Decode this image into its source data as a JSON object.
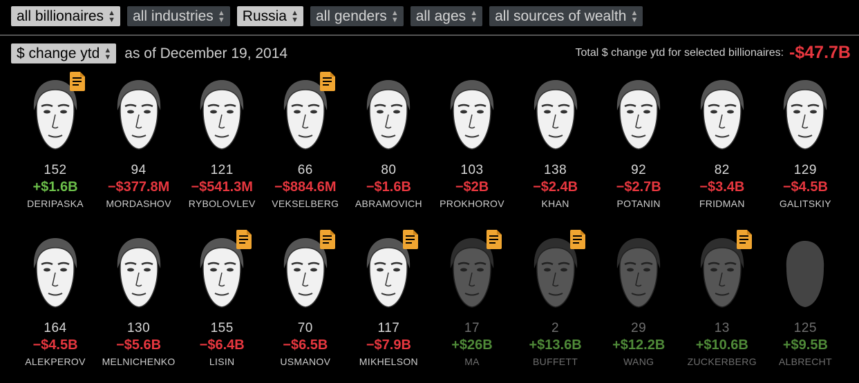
{
  "filters": {
    "billionaires": "all billionaires",
    "industries": "all industries",
    "country": "Russia",
    "genders": "all genders",
    "ages": "all ages",
    "sources": "all sources of wealth"
  },
  "metric_select": "$ change ytd",
  "as_of": "as of December 19, 2014",
  "total_label": "Total $ change ytd for selected billionaires:",
  "total_value": "-$47.7B",
  "colors": {
    "negative": "#e8373f",
    "positive": "#6cc04a",
    "doc_icon": "#f0a531",
    "background": "#000000"
  },
  "people": [
    {
      "rank": "152",
      "change": "+$1.6B",
      "name": "DERIPASKA",
      "sign": "pos",
      "doc": true,
      "dim": false
    },
    {
      "rank": "94",
      "change": "−$377.8M",
      "name": "MORDASHOV",
      "sign": "neg",
      "doc": false,
      "dim": false
    },
    {
      "rank": "121",
      "change": "−$541.3M",
      "name": "RYBOLOVLEV",
      "sign": "neg",
      "doc": false,
      "dim": false
    },
    {
      "rank": "66",
      "change": "−$884.6M",
      "name": "VEKSELBERG",
      "sign": "neg",
      "doc": true,
      "dim": false
    },
    {
      "rank": "80",
      "change": "−$1.6B",
      "name": "ABRAMOVICH",
      "sign": "neg",
      "doc": false,
      "dim": false
    },
    {
      "rank": "103",
      "change": "−$2B",
      "name": "PROKHOROV",
      "sign": "neg",
      "doc": false,
      "dim": false
    },
    {
      "rank": "138",
      "change": "−$2.4B",
      "name": "KHAN",
      "sign": "neg",
      "doc": false,
      "dim": false
    },
    {
      "rank": "92",
      "change": "−$2.7B",
      "name": "POTANIN",
      "sign": "neg",
      "doc": false,
      "dim": false
    },
    {
      "rank": "82",
      "change": "−$3.4B",
      "name": "FRIDMAN",
      "sign": "neg",
      "doc": false,
      "dim": false
    },
    {
      "rank": "129",
      "change": "−$4.5B",
      "name": "GALITSKIY",
      "sign": "neg",
      "doc": false,
      "dim": false
    },
    {
      "rank": "164",
      "change": "−$4.5B",
      "name": "ALEKPEROV",
      "sign": "neg",
      "doc": false,
      "dim": false
    },
    {
      "rank": "130",
      "change": "−$5.6B",
      "name": "MELNICHENKO",
      "sign": "neg",
      "doc": false,
      "dim": false
    },
    {
      "rank": "155",
      "change": "−$6.4B",
      "name": "LISIN",
      "sign": "neg",
      "doc": true,
      "dim": false
    },
    {
      "rank": "70",
      "change": "−$6.5B",
      "name": "USMANOV",
      "sign": "neg",
      "doc": true,
      "dim": false
    },
    {
      "rank": "117",
      "change": "−$7.9B",
      "name": "MIKHELSON",
      "sign": "neg",
      "doc": true,
      "dim": false
    },
    {
      "rank": "17",
      "change": "+$26B",
      "name": "MA",
      "sign": "pos",
      "doc": true,
      "dim": true
    },
    {
      "rank": "2",
      "change": "+$13.6B",
      "name": "BUFFETT",
      "sign": "pos",
      "doc": true,
      "dim": true
    },
    {
      "rank": "29",
      "change": "+$12.2B",
      "name": "WANG",
      "sign": "pos",
      "doc": false,
      "dim": true
    },
    {
      "rank": "13",
      "change": "+$10.6B",
      "name": "ZUCKERBERG",
      "sign": "pos",
      "doc": true,
      "dim": true
    },
    {
      "rank": "125",
      "change": "+$9.5B",
      "name": "ALBRECHT",
      "sign": "pos",
      "doc": false,
      "dim": true
    }
  ]
}
